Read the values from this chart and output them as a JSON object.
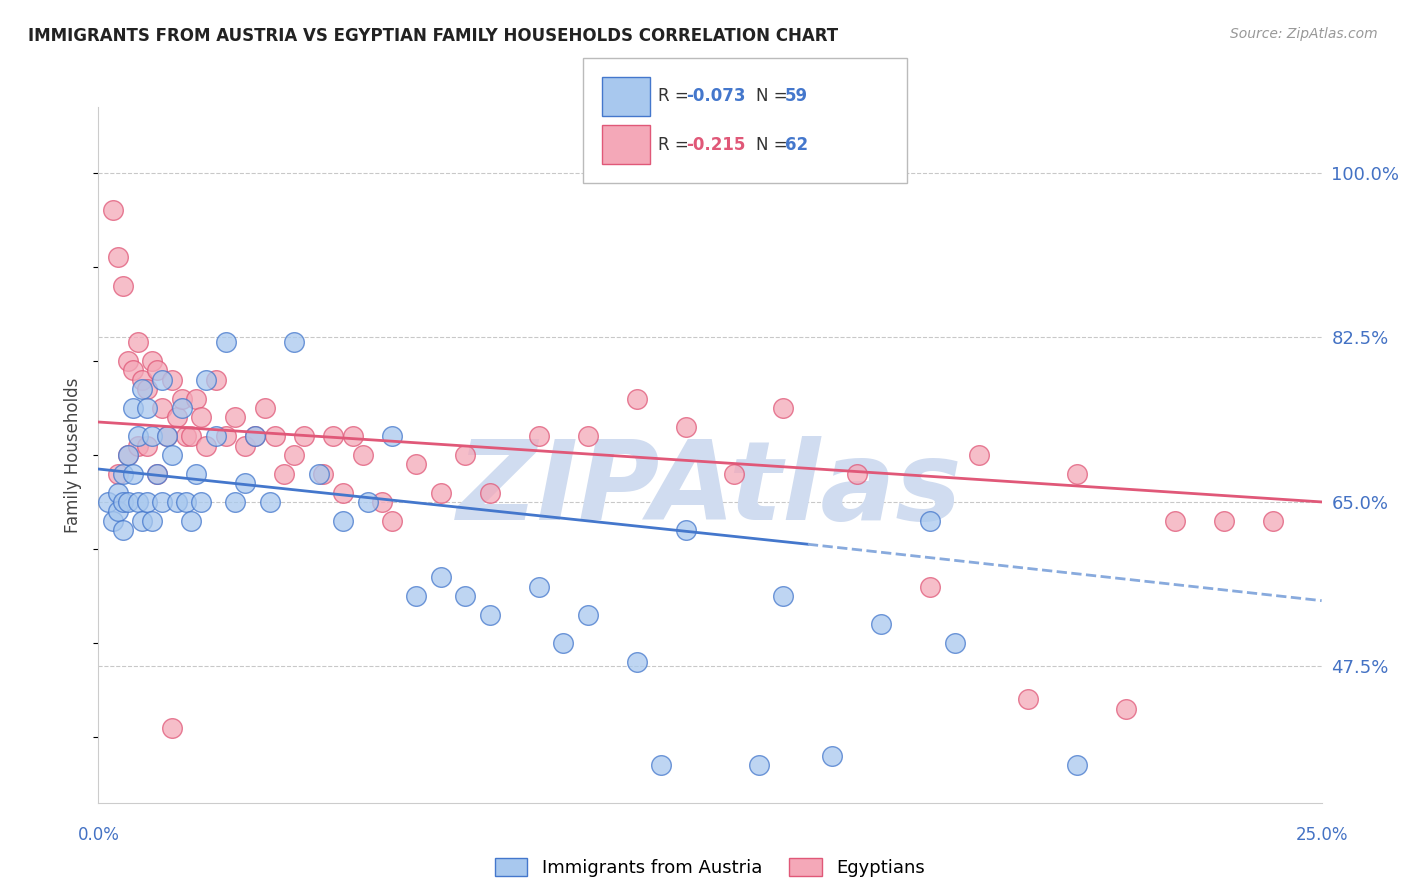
{
  "title": "IMMIGRANTS FROM AUSTRIA VS EGYPTIAN FAMILY HOUSEHOLDS CORRELATION CHART",
  "source": "Source: ZipAtlas.com",
  "ylabel": "Family Households",
  "yticks": [
    47.5,
    65.0,
    82.5,
    100.0
  ],
  "ytick_labels": [
    "47.5%",
    "65.0%",
    "82.5%",
    "100.0%"
  ],
  "xmin": 0.0,
  "xmax": 25.0,
  "ymin": 33.0,
  "ymax": 107.0,
  "blue_color": "#A8C8EE",
  "pink_color": "#F4A8B8",
  "trend_blue_color": "#4477CC",
  "trend_pink_color": "#E05878",
  "trend_blue_dash_color": "#88AADD",
  "watermark": "ZIPAtlas",
  "watermark_color": "#D0DCF0",
  "axis_color": "#4472C4",
  "blue_scatter_x": [
    0.2,
    0.3,
    0.4,
    0.4,
    0.5,
    0.5,
    0.5,
    0.6,
    0.6,
    0.7,
    0.7,
    0.8,
    0.8,
    0.9,
    0.9,
    1.0,
    1.0,
    1.1,
    1.1,
    1.2,
    1.3,
    1.3,
    1.4,
    1.5,
    1.6,
    1.7,
    1.8,
    1.9,
    2.0,
    2.1,
    2.2,
    2.4,
    2.6,
    2.8,
    3.0,
    3.2,
    3.5,
    4.0,
    4.5,
    5.0,
    5.5,
    6.0,
    6.5,
    7.0,
    7.5,
    8.0,
    9.0,
    9.5,
    10.0,
    11.0,
    11.5,
    12.0,
    13.5,
    14.0,
    15.0,
    16.0,
    17.0,
    17.5,
    20.0
  ],
  "blue_scatter_y": [
    65.0,
    63.0,
    66.0,
    64.0,
    68.0,
    65.0,
    62.0,
    70.0,
    65.0,
    75.0,
    68.0,
    72.0,
    65.0,
    77.0,
    63.0,
    75.0,
    65.0,
    72.0,
    63.0,
    68.0,
    65.0,
    78.0,
    72.0,
    70.0,
    65.0,
    75.0,
    65.0,
    63.0,
    68.0,
    65.0,
    78.0,
    72.0,
    82.0,
    65.0,
    67.0,
    72.0,
    65.0,
    82.0,
    68.0,
    63.0,
    65.0,
    72.0,
    55.0,
    57.0,
    55.0,
    53.0,
    56.0,
    50.0,
    53.0,
    48.0,
    37.0,
    62.0,
    37.0,
    55.0,
    38.0,
    52.0,
    63.0,
    50.0,
    37.0
  ],
  "pink_scatter_x": [
    0.3,
    0.4,
    0.5,
    0.6,
    0.7,
    0.8,
    0.9,
    1.0,
    1.1,
    1.2,
    1.3,
    1.4,
    1.5,
    1.6,
    1.7,
    1.8,
    1.9,
    2.0,
    2.1,
    2.2,
    2.4,
    2.6,
    2.8,
    3.0,
    3.2,
    3.4,
    3.6,
    3.8,
    4.0,
    4.2,
    4.6,
    4.8,
    5.0,
    5.2,
    5.4,
    5.8,
    6.0,
    6.5,
    7.0,
    7.5,
    8.0,
    9.0,
    10.0,
    11.0,
    12.0,
    13.0,
    14.0,
    15.5,
    17.0,
    18.0,
    19.0,
    20.0,
    21.0,
    22.0,
    23.0,
    24.0,
    0.4,
    0.6,
    0.8,
    1.0,
    1.2,
    1.5
  ],
  "pink_scatter_y": [
    96.0,
    91.0,
    88.0,
    80.0,
    79.0,
    82.0,
    78.0,
    77.0,
    80.0,
    79.0,
    75.0,
    72.0,
    78.0,
    74.0,
    76.0,
    72.0,
    72.0,
    76.0,
    74.0,
    71.0,
    78.0,
    72.0,
    74.0,
    71.0,
    72.0,
    75.0,
    72.0,
    68.0,
    70.0,
    72.0,
    68.0,
    72.0,
    66.0,
    72.0,
    70.0,
    65.0,
    63.0,
    69.0,
    66.0,
    70.0,
    66.0,
    72.0,
    72.0,
    76.0,
    73.0,
    68.0,
    75.0,
    68.0,
    56.0,
    70.0,
    44.0,
    68.0,
    43.0,
    63.0,
    63.0,
    63.0,
    68.0,
    70.0,
    71.0,
    71.0,
    68.0,
    41.0
  ],
  "blue_trend_x0": 0.0,
  "blue_trend_x1": 14.5,
  "blue_trend_y0": 68.5,
  "blue_trend_y1": 60.5,
  "blue_dash_x0": 14.5,
  "blue_dash_x1": 25.0,
  "blue_dash_y0": 60.5,
  "blue_dash_y1": 54.5,
  "pink_trend_x0": 0.0,
  "pink_trend_x1": 25.0,
  "pink_trend_y0": 73.5,
  "pink_trend_y1": 65.0
}
